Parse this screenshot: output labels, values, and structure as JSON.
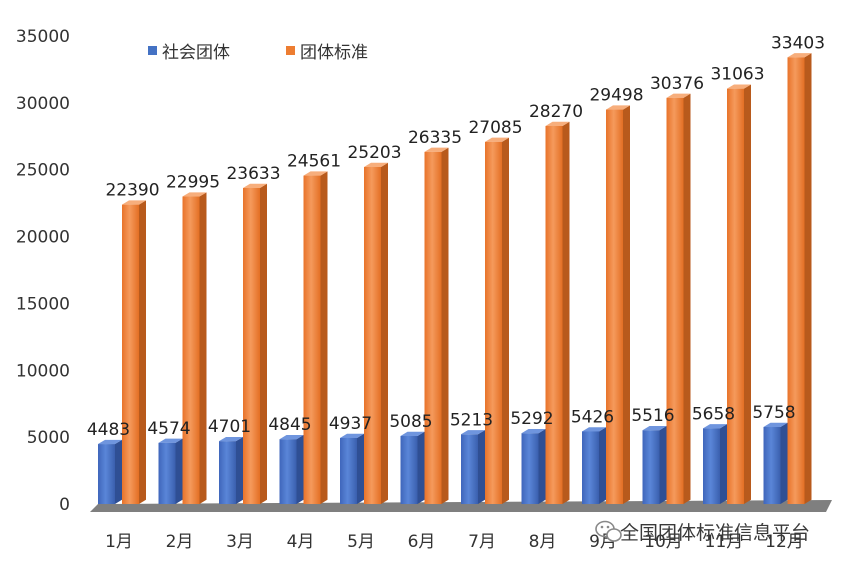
{
  "chart_data": {
    "type": "bar",
    "categories": [
      "1月",
      "2月",
      "3月",
      "4月",
      "5月",
      "6月",
      "7月",
      "8月",
      "9月",
      "10月",
      "11月",
      "12月"
    ],
    "series": [
      {
        "name": "社会团体",
        "color": "#4472c4",
        "values": [
          4483,
          4574,
          4701,
          4845,
          4937,
          5085,
          5213,
          5292,
          5426,
          5516,
          5658,
          5758
        ]
      },
      {
        "name": "团体标准",
        "color": "#ed7d31",
        "values": [
          22390,
          22995,
          23633,
          24561,
          25203,
          26335,
          27085,
          28270,
          29498,
          30376,
          31063,
          33403
        ]
      }
    ],
    "y_ticks": [
      "0",
      "5000",
      "10000",
      "15000",
      "20000",
      "25000",
      "30000",
      "35000"
    ],
    "ylim": [
      0,
      35000
    ],
    "grid": false,
    "legend_position": "top-left",
    "style": "3d-column"
  },
  "watermark": {
    "text": "全国团体标准信息平台",
    "icon": "wechat-icon"
  }
}
